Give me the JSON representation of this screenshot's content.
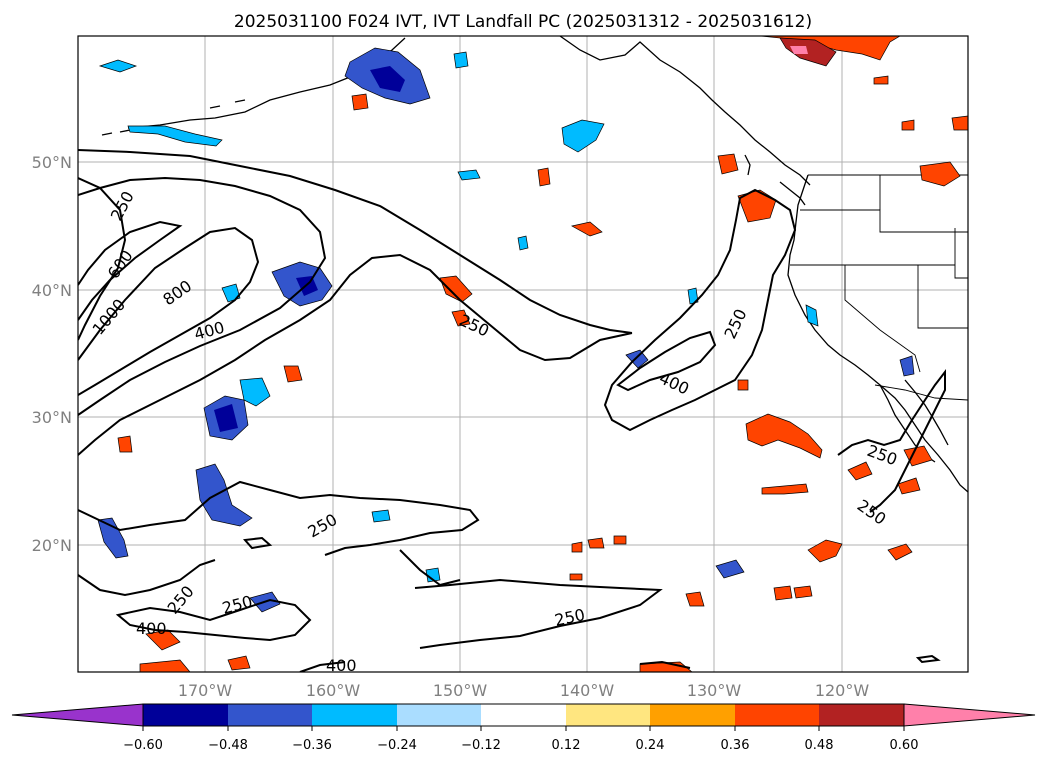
{
  "title": "2025031100 F024 IVT, IVT Landfall PC (2025031312 - 2025031612)",
  "map": {
    "lat_labels": [
      "50°N",
      "40°N",
      "30°N",
      "20°N"
    ],
    "lon_labels": [
      "170°W",
      "160°W",
      "150°W",
      "140°W",
      "130°W",
      "120°W"
    ],
    "contour_labels": [
      "250",
      "600",
      "1000",
      "800",
      "400",
      "250",
      "250",
      "400",
      "250",
      "250",
      "250",
      "250",
      "250",
      "400",
      "250",
      "400"
    ]
  },
  "colorbar": {
    "tick_labels": [
      "−0.60",
      "−0.48",
      "−0.36",
      "−0.24",
      "−0.12",
      "0.12",
      "0.24",
      "0.36",
      "0.48",
      "0.60"
    ],
    "colors": [
      "#9933cc",
      "#000099",
      "#3355cc",
      "#00bbff",
      "#aaddff",
      "#ffffff",
      "#ffe680",
      "#ffa000",
      "#ff4400",
      "#b22222",
      "#ff80aa"
    ]
  }
}
